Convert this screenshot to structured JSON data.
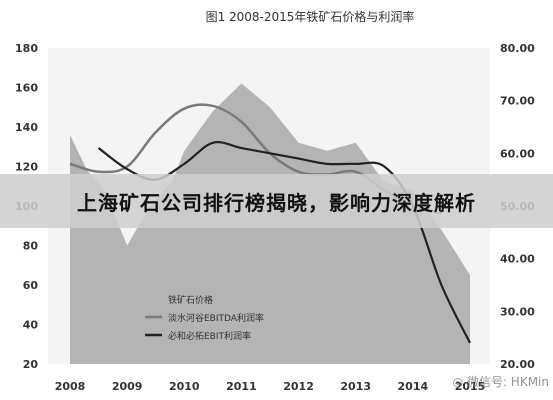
{
  "banner": {
    "headline": "上海矿石公司排行榜揭晓，影响力深度解析"
  },
  "watermark": {
    "text": "微信号: HKMin"
  },
  "colors": {
    "area": "#b4b4b4",
    "line_edita": "#7a7a7a",
    "line_ebit": "#222222",
    "plot_bg": "#f4f4f4",
    "axis_text": "#333333"
  },
  "chart_data": {
    "type": "area",
    "title": "图1  2008-2015年铁矿石价格与利润率",
    "categories": [
      "2008",
      "2009",
      "2010",
      "2011",
      "2012",
      "2013",
      "2014",
      "2015"
    ],
    "x_positions": [
      2008,
      2008.4,
      2008.8,
      2009,
      2009.5,
      2010,
      2010.6,
      2011,
      2011.5,
      2012,
      2012.5,
      2013,
      2013.5,
      2014,
      2014.5,
      2015
    ],
    "y_left_lim": [
      20,
      180
    ],
    "y_left_ticks": [
      20,
      40,
      60,
      80,
      100,
      120,
      140,
      160,
      180
    ],
    "y_right_lim": [
      20,
      80
    ],
    "y_right_ticks": [
      "20.00",
      "30.00",
      "40.00",
      "50.00",
      "60.00",
      "70.00",
      "80.00"
    ],
    "series": [
      {
        "name": "铁矿石价格",
        "axis": "left",
        "x": [
          2008,
          2008.3,
          2008.6,
          2009,
          2009.4,
          2009.8,
          2010,
          2010.5,
          2011,
          2011.5,
          2012,
          2012.5,
          2013,
          2013.5,
          2014,
          2014.5,
          2015
        ],
        "values": [
          136,
          118,
          108,
          80,
          100,
          113,
          128,
          148,
          162,
          150,
          132,
          128,
          132,
          112,
          108,
          88,
          65
        ]
      },
      {
        "name": "淡水河谷EBITDA利润率",
        "axis": "right",
        "x": [
          2008,
          2008.5,
          2009,
          2009.5,
          2010,
          2010.5,
          2011,
          2011.5,
          2012,
          2012.5,
          2013,
          2013.5,
          2014,
          2014.5
        ],
        "values": [
          58,
          56.5,
          57.5,
          64,
          68.5,
          69,
          66,
          60,
          56.5,
          56,
          56.5,
          53,
          50,
          48.5
        ]
      },
      {
        "name": "必和必拓EBIT利润率",
        "axis": "right",
        "x": [
          2008.5,
          2009,
          2009.5,
          2010,
          2010.5,
          2011,
          2011.5,
          2012,
          2012.5,
          2013,
          2013.5,
          2014,
          2014.5,
          2015
        ],
        "values": [
          61,
          57,
          55,
          58,
          62,
          61,
          60,
          59,
          58,
          58,
          57.5,
          50,
          35,
          24
        ]
      }
    ]
  }
}
